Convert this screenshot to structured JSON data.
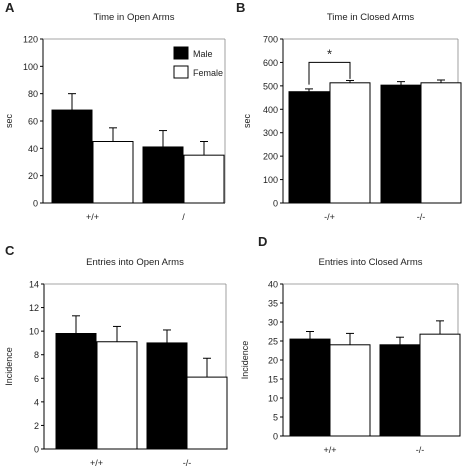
{
  "chart_data": [
    {
      "panel": "A",
      "type": "bar",
      "title": "Time in Open Arms",
      "ylabel": "sec",
      "xlabel": "",
      "categories": [
        "+/+",
        "/"
      ],
      "ylim": [
        0,
        120
      ],
      "yticks": [
        0,
        20,
        40,
        60,
        80,
        100,
        120
      ],
      "series": [
        {
          "name": "Male",
          "color": "#000000",
          "values": [
            68,
            41
          ],
          "errors": [
            12,
            12
          ]
        },
        {
          "name": "Female",
          "color": "#ffffff",
          "values": [
            45,
            35
          ],
          "errors": [
            10,
            10
          ]
        }
      ],
      "legend": "top-right",
      "annotations": []
    },
    {
      "panel": "B",
      "type": "bar",
      "title": "Time in Closed Arms",
      "ylabel": "sec",
      "xlabel": "",
      "categories": [
        "-/+",
        "-/-"
      ],
      "ylim": [
        0,
        700
      ],
      "yticks": [
        0,
        100,
        200,
        300,
        400,
        500,
        600,
        700
      ],
      "series": [
        {
          "name": "",
          "color": "#000000",
          "values": [
            475,
            503
          ],
          "errors": [
            12,
            15
          ]
        },
        {
          "name": "",
          "color": "#ffffff",
          "values": [
            513,
            513
          ],
          "errors": [
            10,
            12
          ]
        }
      ],
      "annotations": [
        "*"
      ]
    },
    {
      "panel": "C",
      "type": "bar",
      "title": "Entries into Open Arms",
      "ylabel": "Incidence",
      "xlabel": "",
      "categories": [
        "+/+",
        "-/-"
      ],
      "ylim": [
        0,
        14
      ],
      "yticks": [
        0,
        2,
        4,
        6,
        8,
        10,
        12,
        14
      ],
      "series": [
        {
          "name": "",
          "color": "#000000",
          "values": [
            9.8,
            9.0
          ],
          "errors": [
            1.5,
            1.1
          ]
        },
        {
          "name": "",
          "color": "#ffffff",
          "values": [
            9.1,
            6.1
          ],
          "errors": [
            1.3,
            1.6
          ]
        }
      ],
      "annotations": []
    },
    {
      "panel": "D",
      "type": "bar",
      "title": "Entries into Closed Arms",
      "ylabel": "Incidence",
      "xlabel": "",
      "categories": [
        "+/+",
        "-/-"
      ],
      "ylim": [
        0,
        40
      ],
      "yticks": [
        0,
        5,
        10,
        15,
        20,
        25,
        30,
        35,
        40
      ],
      "series": [
        {
          "name": "",
          "color": "#000000",
          "values": [
            25.5,
            24.0
          ],
          "errors": [
            2.0,
            2.0
          ]
        },
        {
          "name": "",
          "color": "#ffffff",
          "values": [
            24.0,
            26.8
          ],
          "errors": [
            3.0,
            3.5
          ]
        }
      ],
      "annotations": []
    }
  ]
}
